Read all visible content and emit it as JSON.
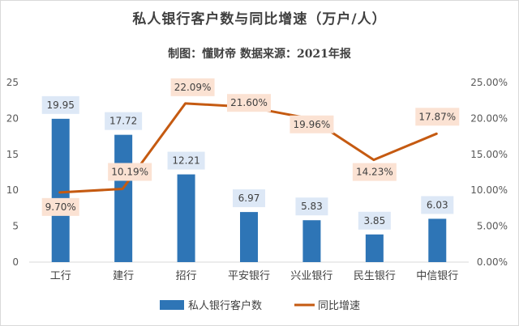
{
  "chart_data": {
    "type": "bar+line",
    "title": "私人银行客户数与同比增速（万户/人）",
    "subtitle": "制图：懂财帝   数据来源：2021年报",
    "categories": [
      "工行",
      "建行",
      "招行",
      "平安银行",
      "兴业银行",
      "民生银行",
      "中信银行"
    ],
    "series": [
      {
        "name": "私人银行客户数",
        "kind": "bar",
        "axis": "left",
        "color": "#2e75b6",
        "label_bg": "#dde8f6",
        "values": [
          19.95,
          17.72,
          12.21,
          6.97,
          5.83,
          3.85,
          6.03
        ],
        "labels": [
          "19.95",
          "17.72",
          "12.21",
          "6.97",
          "5.83",
          "3.85",
          "6.03"
        ]
      },
      {
        "name": "同比增速",
        "kind": "line",
        "axis": "right",
        "color": "#c55a11",
        "label_bg": "#fbe2d3",
        "values": [
          9.7,
          10.19,
          22.09,
          21.6,
          19.96,
          14.23,
          17.87
        ],
        "labels": [
          "9.70%",
          "10.19%",
          "22.09%",
          "21.60%",
          "19.96%",
          "14.23%",
          "17.87%"
        ]
      }
    ],
    "y_left": {
      "min": 0,
      "max": 25,
      "ticks": [
        "0",
        "5",
        "10",
        "15",
        "20",
        "25"
      ]
    },
    "y_right": {
      "min": 0,
      "max": 25,
      "ticks": [
        "0.00%",
        "5.00%",
        "10.00%",
        "15.00%",
        "20.00%",
        "25.00%"
      ]
    },
    "grid": false,
    "legend_position": "bottom"
  }
}
